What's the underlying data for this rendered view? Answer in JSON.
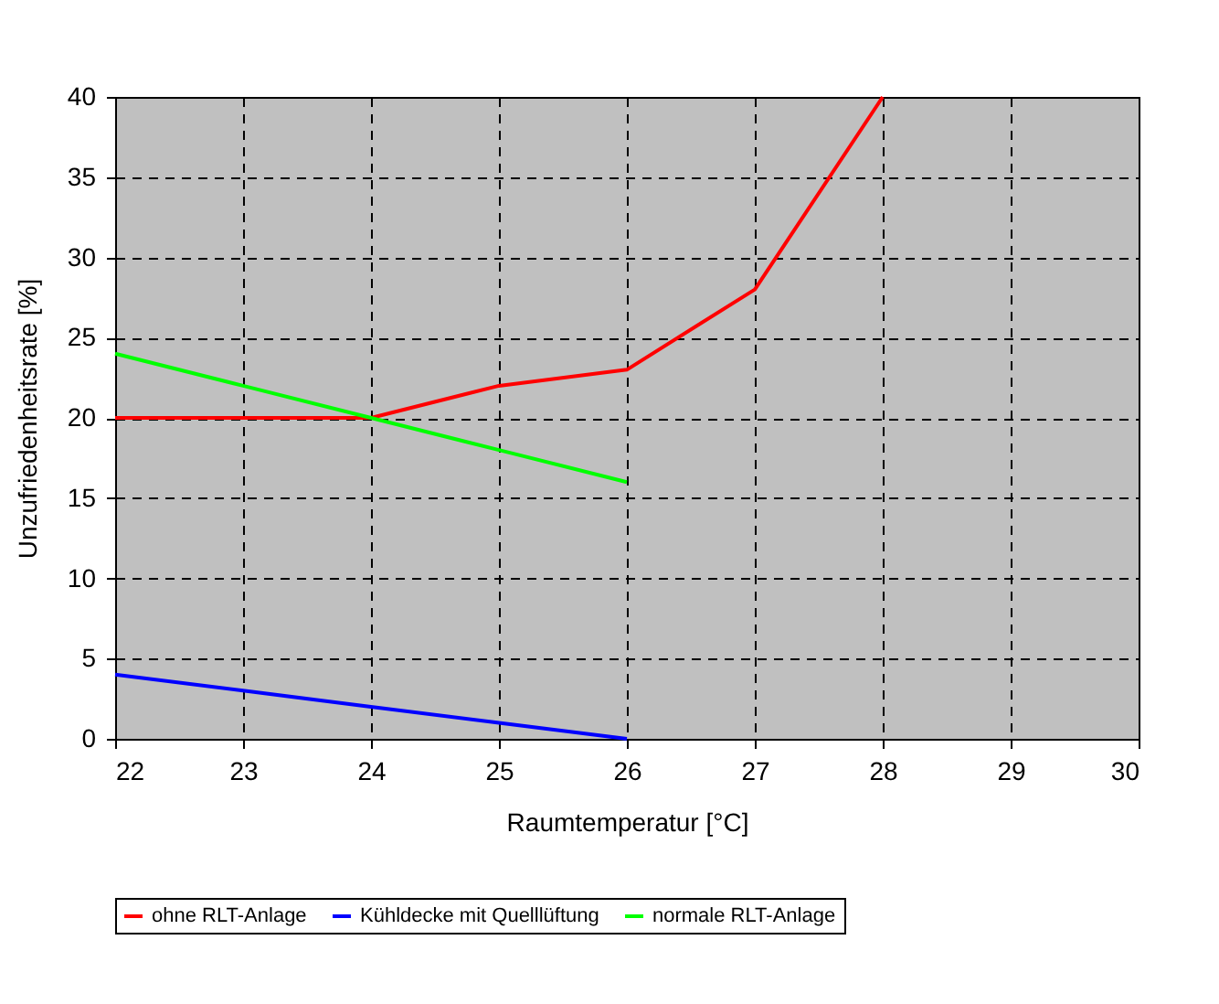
{
  "chart_data": {
    "type": "line",
    "xlabel": "Raumtemperatur [°C]",
    "ylabel": "Unzufriedenheitsrate [%]",
    "x": [
      22,
      23,
      24,
      25,
      26,
      27,
      28
    ],
    "series": [
      {
        "name": "ohne RLT-Anlage",
        "color": "#ff0000",
        "values": [
          20,
          20,
          20,
          22,
          23,
          28,
          40
        ]
      },
      {
        "name": "Kühldecke mit Quelllüftung",
        "color": "#0000ff",
        "values": [
          4,
          3,
          2,
          1,
          0,
          null,
          null
        ]
      },
      {
        "name": "normale RLT-Anlage",
        "color": "#00ff00",
        "values": [
          24,
          22,
          20,
          18,
          16,
          null,
          null
        ]
      }
    ],
    "xlim": [
      22,
      30
    ],
    "xticks": [
      22,
      23,
      24,
      25,
      26,
      27,
      28,
      29,
      30
    ],
    "ylim": [
      0,
      40
    ],
    "yticks": [
      0,
      5,
      10,
      15,
      20,
      25,
      30,
      35,
      40
    ],
    "grid": true,
    "legend": "bottom",
    "marker": "none",
    "line_style": "solid"
  }
}
